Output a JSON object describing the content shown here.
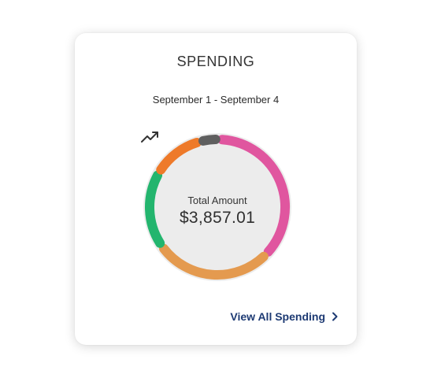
{
  "card": {
    "title": "SPENDING",
    "date_range": "September 1 - September 4",
    "total_label": "Total Amount",
    "total_value": "$3,857.01",
    "link_label": "View All Spending"
  },
  "icons": {
    "trend": "trending-up-icon",
    "chevron": "chevron-right-icon"
  },
  "colors": {
    "track": "#ececec",
    "link": "#1d3a73",
    "segments": [
      "#e0569f",
      "#e49a4f",
      "#23b56e",
      "#ee7a2a",
      "#5f5f5f"
    ]
  },
  "chart_data": {
    "type": "pie",
    "style": "donut",
    "segments": [
      {
        "color": "#e0569f",
        "percent": 36
      },
      {
        "color": "#e49a4f",
        "percent": 27
      },
      {
        "color": "#23b56e",
        "percent": 17
      },
      {
        "color": "#ee7a2a",
        "percent": 11
      },
      {
        "color": "#5f5f5f",
        "percent": 3
      }
    ]
  }
}
